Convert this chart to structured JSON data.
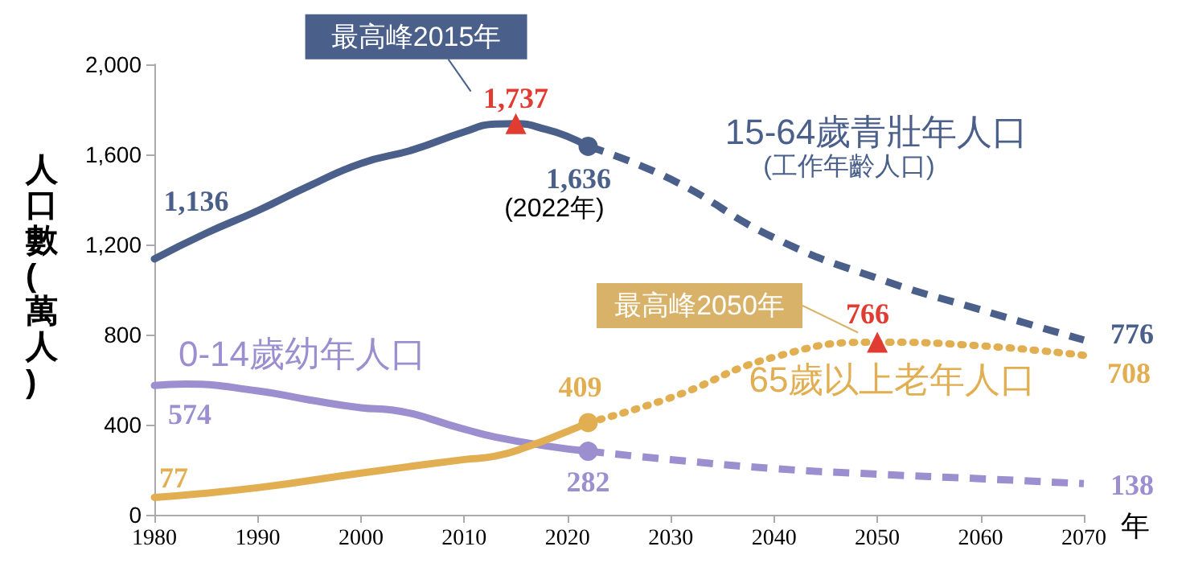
{
  "chart_data": {
    "type": "line",
    "xlabel": "年",
    "ylabel": "人口數(萬人)",
    "xlim": [
      1980,
      2070
    ],
    "xticks": [
      1980,
      1990,
      2000,
      2010,
      2020,
      2030,
      2040,
      2050,
      2060,
      2070
    ],
    "ylim": [
      0,
      2000
    ],
    "yticks": [
      0,
      400,
      800,
      {
        "value": 1200,
        "label": "1,200"
      },
      {
        "value": 1600,
        "label": "1,600"
      },
      {
        "value": 2000,
        "label": "2,000"
      }
    ],
    "grid": false,
    "legend": false,
    "series": [
      {
        "name": "15-64歲青壯年人口",
        "color": "#4a5f8a",
        "line_style": "solid",
        "marker": "none",
        "x": [
          1980,
          1985,
          1990,
          1995,
          2000,
          2005,
          2010,
          2013,
          2015,
          2018,
          2020,
          2022
        ],
        "values": [
          1136,
          1250,
          1350,
          1460,
          1560,
          1620,
          1700,
          1735,
          1737,
          1710,
          1680,
          1636
        ],
        "value_labels": [
          "1,136",
          null,
          null,
          null,
          null,
          null,
          null,
          null,
          null,
          null,
          null,
          null
        ]
      },
      {
        "color": "#4a5f8a",
        "line_style": "dashed",
        "marker": "none",
        "x": [
          2022,
          2030,
          2040,
          2050,
          2060,
          2070
        ],
        "values": [
          1636,
          1490,
          1230,
          1050,
          910,
          776
        ],
        "value_labels": [
          null,
          null,
          null,
          null,
          null,
          "776"
        ]
      },
      {
        "name": "0-14歲幼年人口",
        "color": "#9b8fd0",
        "line_style": "solid",
        "marker": "none",
        "x": [
          1980,
          1983,
          1990,
          1995,
          2000,
          2003,
          2010,
          2013,
          2018,
          2022
        ],
        "values": [
          574,
          580,
          550,
          510,
          475,
          465,
          380,
          345,
          305,
          282
        ],
        "value_labels": [
          "574",
          null,
          null,
          null,
          null,
          null,
          null,
          null,
          null,
          null
        ]
      },
      {
        "color": "#9b8fd0",
        "line_style": "dashed",
        "marker": "none",
        "x": [
          2022,
          2030,
          2040,
          2050,
          2060,
          2070
        ],
        "values": [
          282,
          245,
          205,
          180,
          160,
          138
        ],
        "value_labels": [
          null,
          null,
          null,
          null,
          null,
          "138"
        ]
      },
      {
        "name": "65歲以上老年人口",
        "color": "#e2ae52",
        "line_style": "solid",
        "marker": "none",
        "x": [
          1980,
          1990,
          2000,
          2010,
          2013,
          2016,
          2020,
          2022
        ],
        "values": [
          77,
          120,
          185,
          245,
          260,
          300,
          370,
          409
        ],
        "value_labels": [
          "77",
          null,
          null,
          null,
          null,
          null,
          null,
          null
        ]
      },
      {
        "color": "#e2ae52",
        "line_style": "dotted",
        "marker": "none",
        "x": [
          2022,
          2030,
          2040,
          2050,
          2060,
          2070
        ],
        "values": [
          409,
          520,
          700,
          766,
          750,
          708
        ],
        "value_labels": [
          null,
          null,
          null,
          null,
          null,
          "708"
        ]
      },
      {
        "type": "scatter",
        "marker": "circle",
        "colors": [
          "#4a5f8a",
          "#9b8fd0",
          "#e2ae52"
        ],
        "x": [
          2022,
          2022,
          2022
        ],
        "values": [
          1636,
          282,
          409
        ],
        "value_labels": [
          "1,636",
          "282",
          "409"
        ]
      },
      {
        "type": "scatter",
        "marker": "triangle",
        "color": "#e03c31",
        "x": [
          2015,
          2050
        ],
        "values": [
          1737,
          766
        ],
        "value_labels": [
          "1,737",
          "766"
        ]
      }
    ],
    "annotations": [
      {
        "text": "最高峰2015年",
        "x": 2015,
        "y": 1737
      },
      "最高峰2050年",
      {
        "text": "(2022年)",
        "x": 2022,
        "y": 1636
      },
      "(工作年齡人口)"
    ]
  }
}
